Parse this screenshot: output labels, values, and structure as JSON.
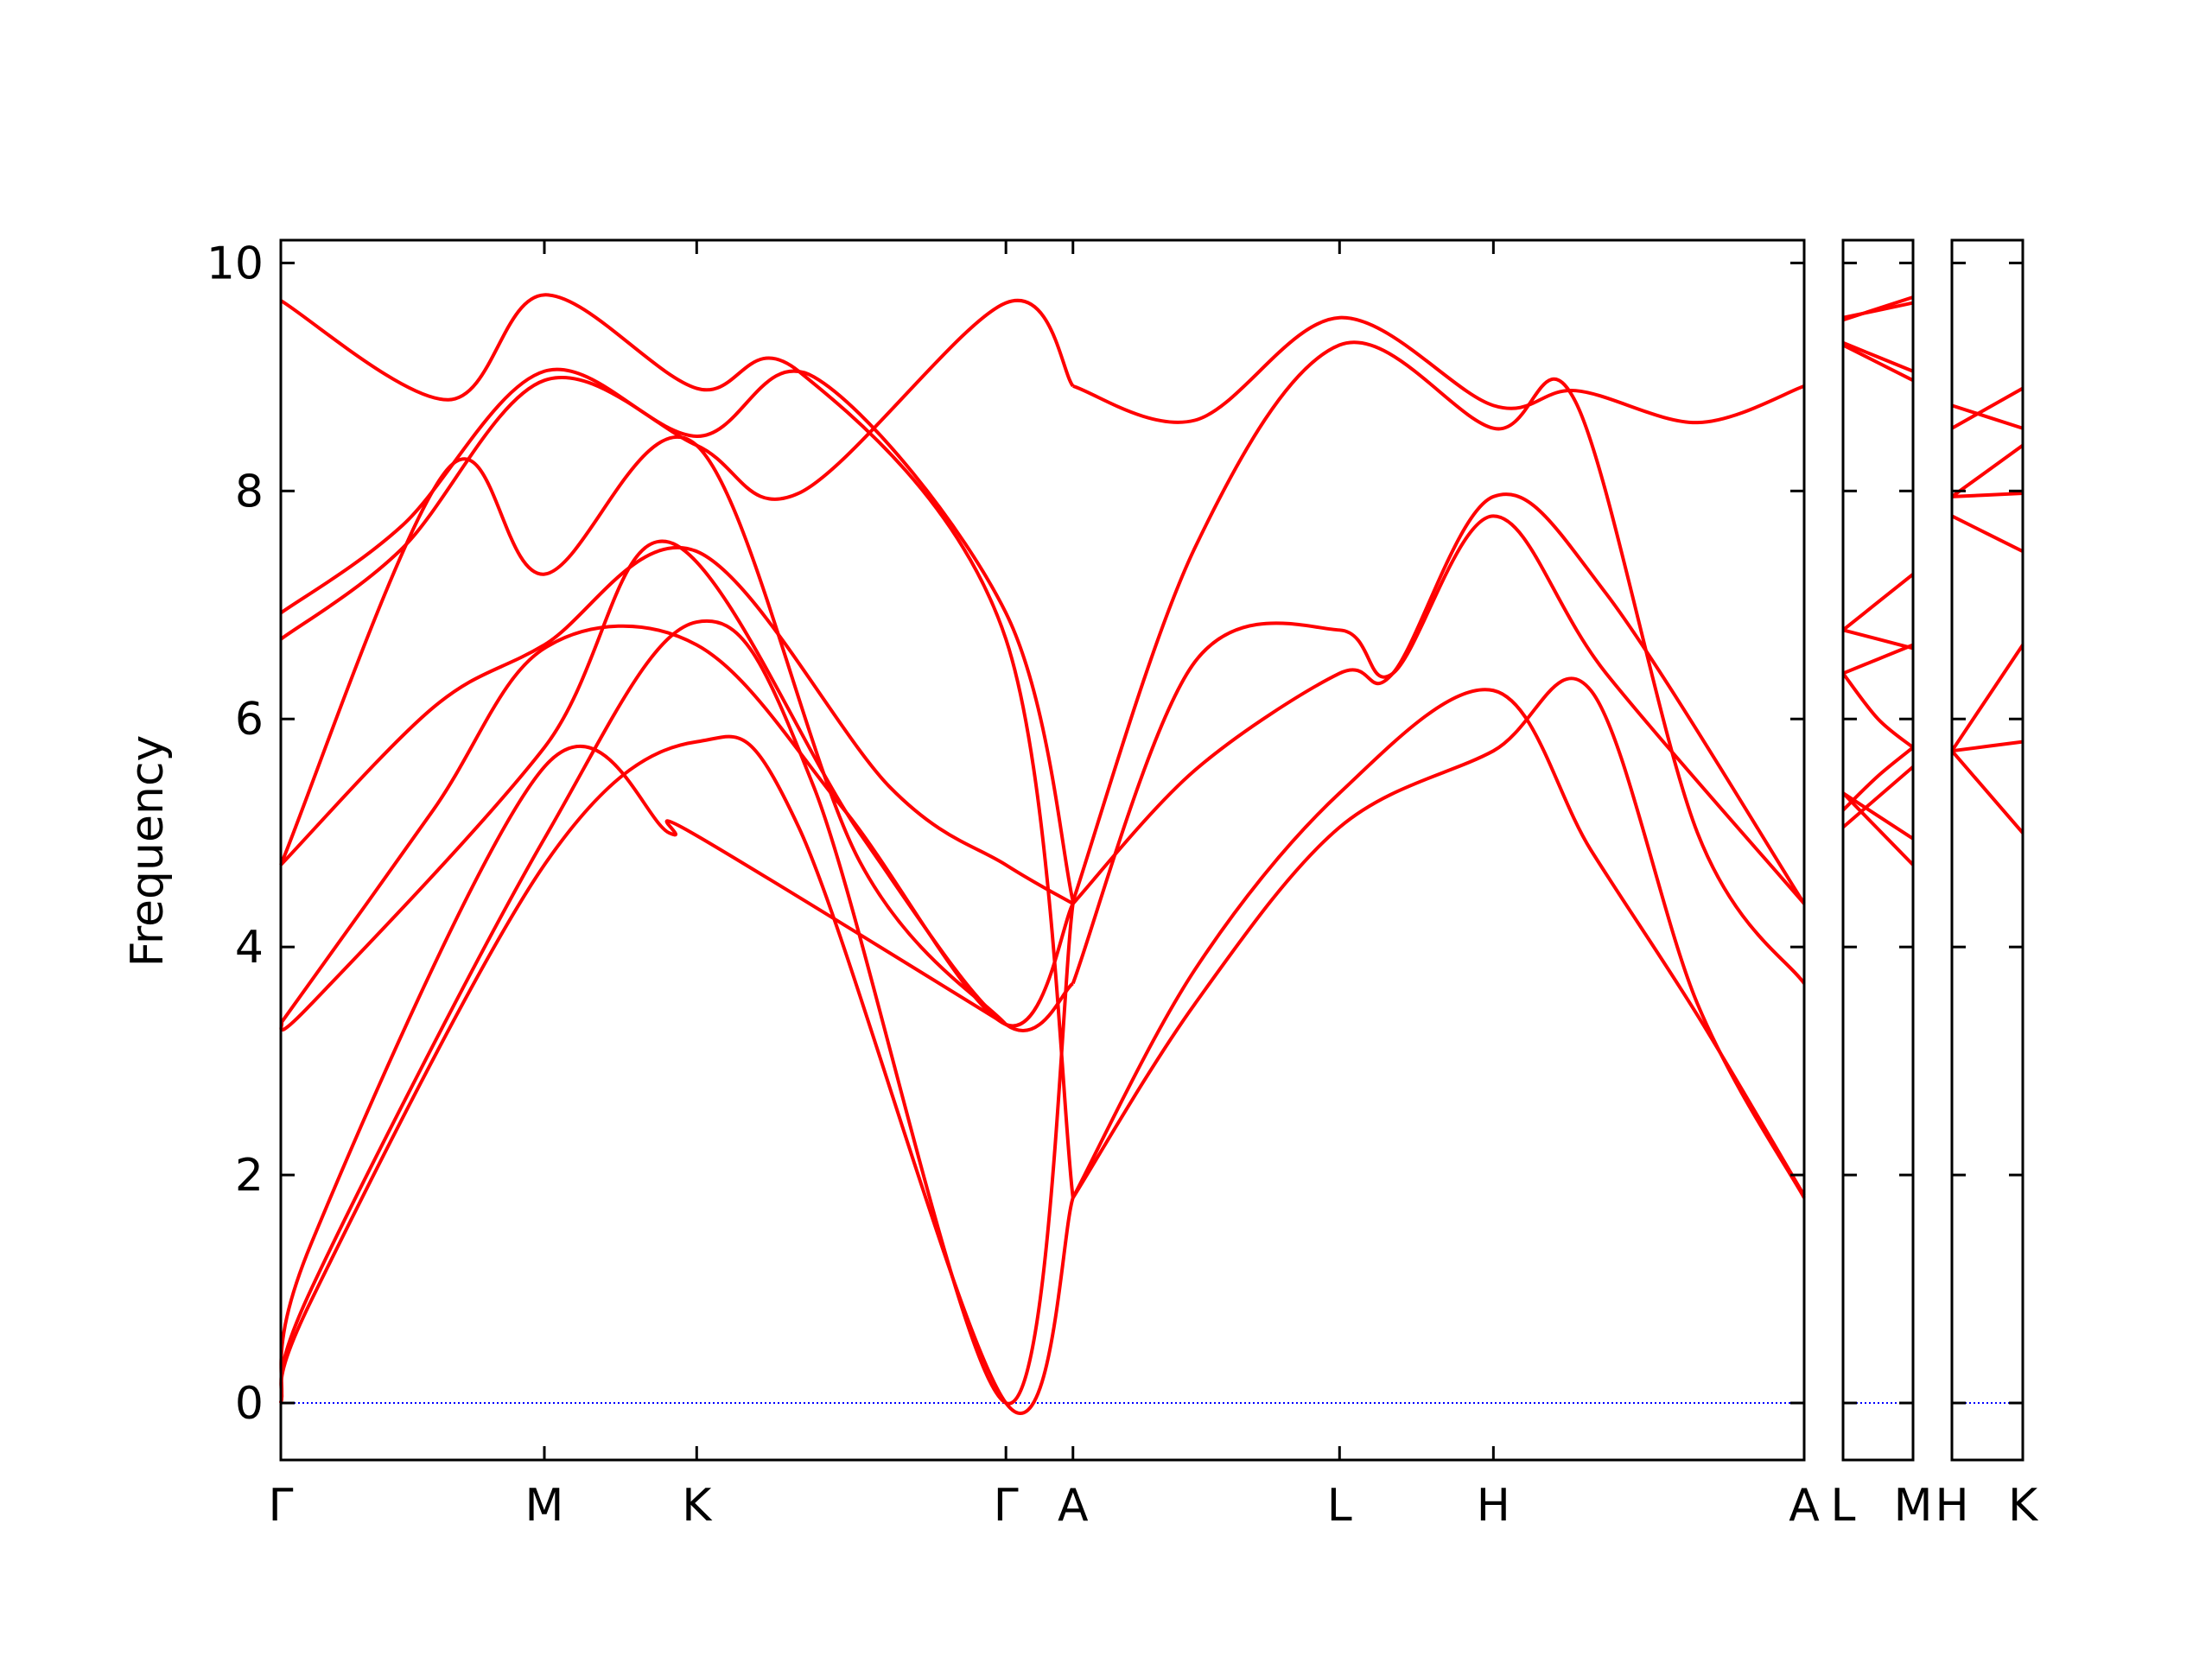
{
  "chart_data": {
    "type": "line",
    "ylabel": "Frequency",
    "ylim": [
      -0.5,
      10.2
    ],
    "yticks": [
      "0",
      "2",
      "4",
      "6",
      "8",
      "10"
    ],
    "ytick_values": [
      0,
      2,
      4,
      6,
      8,
      10
    ],
    "line_color": "#ff0000",
    "zero_line_color": "#0000ff",
    "panels": [
      {
        "xrange": [
          0,
          1.0
        ],
        "ticks": [
          {
            "x": 0.0,
            "label": "Γ"
          },
          {
            "x": 0.173,
            "label": "M"
          },
          {
            "x": 0.273,
            "label": "K"
          },
          {
            "x": 0.476,
            "label": "Γ"
          },
          {
            "x": 0.52,
            "label": "A"
          },
          {
            "x": 0.695,
            "label": "L"
          },
          {
            "x": 0.796,
            "label": "H"
          },
          {
            "x": 1.0,
            "label": "A"
          }
        ],
        "series": [
          {
            "x": [
              0,
              0.02,
              0.173,
              0.273,
              0.34,
              0.476,
              0.52
            ],
            "y": [
              0,
              0.9,
              4.72,
              5.8,
              5.05,
              0,
              1.8
            ]
          },
          {
            "x": [
              0,
              0.02,
              0.173,
              0.273,
              0.35,
              0.476,
              0.52
            ],
            "y": [
              0,
              1.0,
              4.95,
              6.85,
              5.4,
              0,
              4.38
            ]
          },
          {
            "x": [
              0,
              0.02,
              0.173,
              0.255,
              0.27,
              0.476
            ],
            "y": [
              0,
              1.4,
              5.58,
              5.0,
              5.0,
              3.32
            ]
          },
          {
            "x": [
              0,
              0.02,
              0.173,
              0.255,
              0.38,
              0.476,
              0.52
            ],
            "y": [
              3.33,
              3.5,
              5.75,
              7.55,
              5.0,
              3.32,
              3.68
            ]
          },
          {
            "x": [
              0,
              0.1,
              0.173,
              0.273,
              0.37,
              0.476,
              0.52
            ],
            "y": [
              3.33,
              5.2,
              6.62,
              6.65,
              5.2,
              3.32,
              4.38
            ]
          },
          {
            "x": [
              0,
              0.1,
              0.173,
              0.273,
              0.4,
              0.476,
              0.52
            ],
            "y": [
              4.72,
              6.1,
              6.65,
              7.47,
              5.4,
              4.72,
              4.38
            ]
          },
          {
            "x": [
              0,
              0.11,
              0.173,
              0.273,
              0.38,
              0.476
            ],
            "y": [
              4.72,
              8.2,
              7.27,
              8.4,
              4.75,
              3.32
            ]
          },
          {
            "x": [
              0,
              0.08,
              0.173,
              0.273,
              0.34,
              0.476,
              0.52
            ],
            "y": [
              6.7,
              7.5,
              8.97,
              8.4,
              7.98,
              9.65,
              8.92
            ]
          },
          {
            "x": [
              0,
              0.08,
              0.173,
              0.273,
              0.35,
              0.476,
              0.52
            ],
            "y": [
              6.93,
              7.7,
              9.05,
              8.48,
              9.0,
              6.93,
              4.4
            ]
          },
          {
            "x": [
              0,
              0.11,
              0.173,
              0.273,
              0.34,
              0.476,
              0.52
            ],
            "y": [
              9.67,
              8.8,
              9.72,
              8.9,
              9.05,
              6.7,
              1.8
            ]
          },
          {
            "x": [
              0.52,
              0.6,
              0.695,
              0.796,
              0.86,
              0.93,
              1.0
            ],
            "y": [
              1.8,
              3.5,
              5.05,
              5.72,
              6.25,
              3.5,
              1.8
            ]
          },
          {
            "x": [
              0.52,
              0.6,
              0.695,
              0.796,
              0.86,
              0.93,
              1.0
            ],
            "y": [
              1.8,
              3.8,
              5.35,
              6.25,
              4.85,
              3.4,
              1.82
            ]
          },
          {
            "x": [
              0.52,
              0.6,
              0.695,
              0.73,
              0.796,
              0.87,
              1.0
            ],
            "y": [
              3.68,
              6.5,
              6.78,
              6.4,
              7.78,
              6.4,
              4.38
            ]
          },
          {
            "x": [
              0.52,
              0.6,
              0.695,
              0.73,
              0.796,
              0.87,
              1.0
            ],
            "y": [
              4.38,
              5.55,
              6.4,
              6.4,
              7.95,
              7.1,
              4.38
            ]
          },
          {
            "x": [
              0.52,
              0.6,
              0.695,
              0.796,
              0.85,
              0.93,
              1.0
            ],
            "y": [
              4.4,
              7.5,
              9.28,
              8.55,
              8.78,
              5.0,
              3.68
            ]
          },
          {
            "x": [
              0.52,
              0.6,
              0.695,
              0.796,
              0.85,
              0.93,
              1.0
            ],
            "y": [
              8.92,
              8.62,
              9.52,
              8.75,
              8.88,
              8.6,
              8.92
            ]
          }
        ]
      },
      {
        "xrange": [
          0,
          1.0
        ],
        "ticks": [
          {
            "x": 0.0,
            "label": "L"
          },
          {
            "x": 1.0,
            "label": "M"
          }
        ],
        "series": [
          {
            "x": [
              0,
              1
            ],
            "y": [
              9.5,
              9.7
            ]
          },
          {
            "x": [
              0,
              1
            ],
            "y": [
              9.52,
              9.65
            ]
          },
          {
            "x": [
              0,
              1
            ],
            "y": [
              9.28,
              8.97
            ]
          },
          {
            "x": [
              0,
              1
            ],
            "y": [
              9.3,
              9.05
            ]
          },
          {
            "x": [
              0,
              1
            ],
            "y": [
              6.78,
              7.27
            ]
          },
          {
            "x": [
              0,
              1
            ],
            "y": [
              6.78,
              6.62
            ]
          },
          {
            "x": [
              0,
              1
            ],
            "y": [
              6.4,
              6.65
            ]
          },
          {
            "x": [
              0,
              0.5,
              1
            ],
            "y": [
              6.4,
              6.0,
              5.75
            ]
          },
          {
            "x": [
              0,
              1
            ],
            "y": [
              5.35,
              4.72
            ]
          },
          {
            "x": [
              0,
              1
            ],
            "y": [
              5.05,
              5.58
            ]
          },
          {
            "x": [
              0,
              0.5,
              1
            ],
            "y": [
              5.2,
              5.5,
              5.75
            ]
          },
          {
            "x": [
              0,
              1
            ],
            "y": [
              5.35,
              4.95
            ]
          }
        ]
      },
      {
        "xrange": [
          0,
          1.0
        ],
        "ticks": [
          {
            "x": 0.0,
            "label": "H"
          },
          {
            "x": 1.0,
            "label": "K"
          }
        ],
        "series": [
          {
            "x": [
              0,
              1
            ],
            "y": [
              8.75,
              8.55
            ]
          },
          {
            "x": [
              0,
              1
            ],
            "y": [
              8.55,
              8.9
            ]
          },
          {
            "x": [
              0,
              1
            ],
            "y": [
              7.95,
              8.4
            ]
          },
          {
            "x": [
              0,
              1
            ],
            "y": [
              7.95,
              7.98
            ]
          },
          {
            "x": [
              0,
              1
            ],
            "y": [
              7.78,
              7.47
            ]
          },
          {
            "x": [
              0,
              1
            ],
            "y": [
              5.72,
              6.65
            ]
          },
          {
            "x": [
              0,
              1
            ],
            "y": [
              5.72,
              5.8
            ]
          },
          {
            "x": [
              0,
              1
            ],
            "y": [
              5.72,
              5.0
            ]
          }
        ]
      }
    ]
  }
}
